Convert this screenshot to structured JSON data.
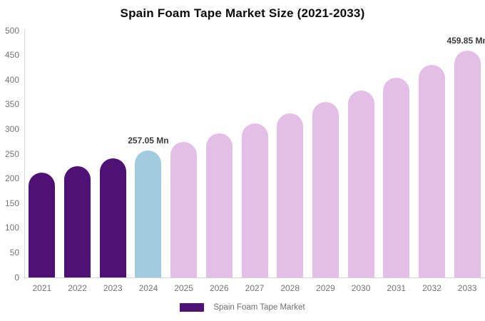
{
  "title": "Spain Foam Tape Market Size (2021-2033)",
  "chart_data": {
    "type": "bar",
    "title": "Spain Foam Tape Market Size (2021-2033)",
    "categories": [
      "2021",
      "2022",
      "2023",
      "2024",
      "2025",
      "2026",
      "2027",
      "2028",
      "2029",
      "2030",
      "2031",
      "2032",
      "2033"
    ],
    "values": [
      211.8,
      226.0,
      241.0,
      257.05,
      274.2,
      292.5,
      312.0,
      332.9,
      355.1,
      378.8,
      404.0,
      431.0,
      459.85
    ],
    "bar_colors": [
      "#4E1277",
      "#4E1277",
      "#4E1277",
      "#A2CBE0",
      "#E3BEE6",
      "#E3BEE6",
      "#E3BEE6",
      "#E3BEE6",
      "#E3BEE6",
      "#E3BEE6",
      "#E3BEE6",
      "#E3BEE6",
      "#E3BEE6"
    ],
    "annotations": [
      {
        "index": 3,
        "text": "257.05 Mn"
      },
      {
        "index": 12,
        "text": "459.85 Mn"
      }
    ],
    "xlabel": "",
    "ylabel": "",
    "ylim": [
      0,
      500
    ],
    "yticks": [
      0,
      50,
      100,
      150,
      200,
      250,
      300,
      350,
      400,
      450,
      500
    ],
    "grid": false,
    "legend": {
      "label": "Spain Foam Tape Market",
      "swatch_color": "#4E1277",
      "position": "bottom"
    }
  },
  "colors": {
    "background": "#ffffff",
    "axis_line": "#d6d6d6",
    "tick_text": "#757575",
    "annotation_text": "#3a3a3a",
    "legend_text": "#6f6f6f",
    "title_text": "#0b0b0b",
    "highlight_bar": "#A2CBE0",
    "forecast_bar": "#E3BEE6",
    "historic_bar": "#4E1277"
  }
}
